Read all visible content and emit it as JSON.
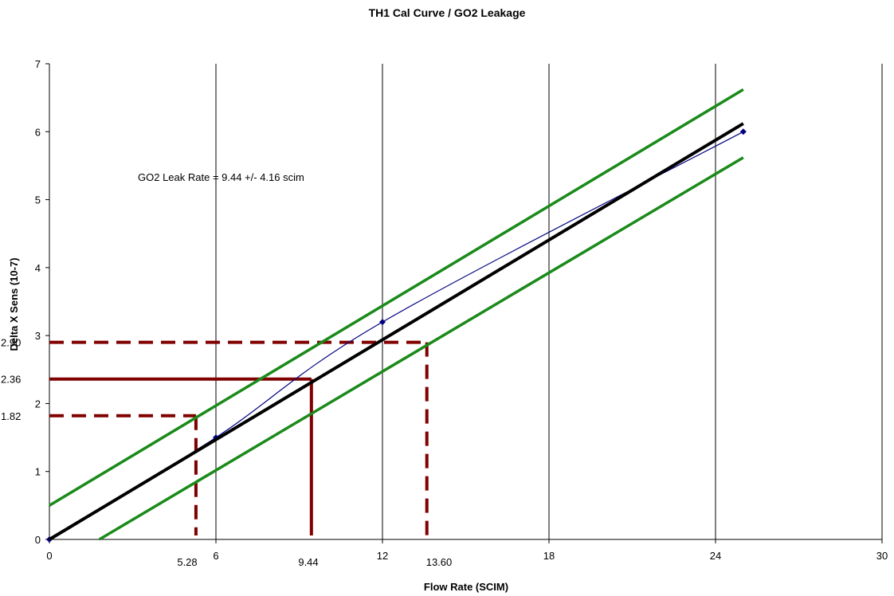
{
  "chart_data": {
    "type": "line",
    "title": "TH1 Cal Curve / GO2 Leakage",
    "xlabel": "Flow Rate (SCIM)",
    "ylabel": "Delta X Sens (10-7)",
    "xlim": [
      0,
      30
    ],
    "ylim": [
      0,
      7
    ],
    "x_ticks": [
      "0",
      "6",
      "12",
      "18",
      "24",
      "30"
    ],
    "y_ticks": [
      "0",
      "1",
      "2",
      "3",
      "4",
      "5",
      "6",
      "7"
    ],
    "grid": "vertical",
    "legend": "none",
    "series": [
      {
        "kind": "data",
        "color": "#000080",
        "points": [
          [
            0,
            0
          ],
          [
            6,
            1.5
          ],
          [
            12,
            3.2
          ],
          [
            25,
            6.0
          ]
        ]
      },
      {
        "kind": "fit",
        "color": "#000000",
        "points": [
          [
            0,
            0
          ],
          [
            25,
            6.12
          ]
        ]
      },
      {
        "kind": "upper-bound",
        "color": "#1a8a1a",
        "points": [
          [
            0,
            0.5
          ],
          [
            25,
            6.62
          ]
        ]
      },
      {
        "kind": "lower-bound",
        "color": "#1a8a1a",
        "points": [
          [
            1.8,
            0
          ],
          [
            25,
            5.62
          ]
        ]
      }
    ],
    "readouts": [
      {
        "y": 1.82,
        "x": 5.28,
        "y_label": "1.82",
        "x_label": "5.28",
        "style": "dashed",
        "color": "#800000"
      },
      {
        "y": 2.36,
        "x": 9.44,
        "y_label": "2.36",
        "x_label": "9.44",
        "style": "solid",
        "color": "#800000"
      },
      {
        "y": 2.9,
        "x": 13.6,
        "y_label": "2.90",
        "x_label": "13.60",
        "style": "dashed",
        "color": "#800000"
      }
    ],
    "annotation": "GO2 Leak Rate = 9.44 +/- 4.16 scim"
  }
}
